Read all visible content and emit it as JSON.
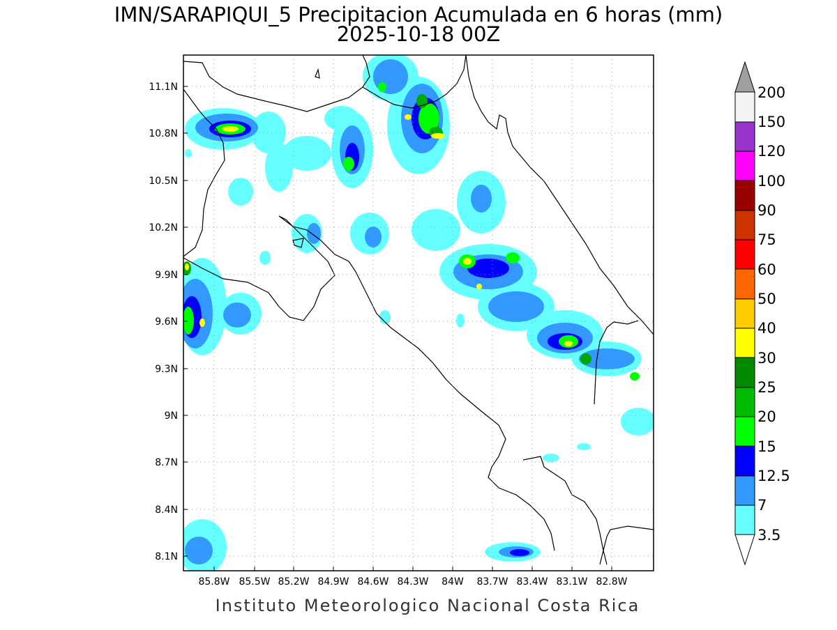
{
  "title": {
    "line1": "IMN/SARAPIQUI_5 Precipitacion Acumulada en 6 horas (mm)",
    "line2": "2025-10-18 00Z"
  },
  "footer": "Instituto Meteorologico Nacional Costa Rica",
  "axes": {
    "lat_labels": [
      "11.1N",
      "10.8N",
      "10.5N",
      "10.2N",
      "9.9N",
      "9.6N",
      "9.3N",
      "9N",
      "8.7N",
      "8.4N",
      "8.1N"
    ],
    "lon_labels": [
      "85.8W",
      "85.5W",
      "85.2W",
      "84.9W",
      "84.6W",
      "84.3W",
      "84W",
      "83.7W",
      "83.4W",
      "83.1W",
      "82.8W"
    ],
    "grid": true
  },
  "colorbar": {
    "labels": [
      "200",
      "150",
      "120",
      "100",
      "90",
      "75",
      "60",
      "50",
      "40",
      "30",
      "25",
      "20",
      "15",
      "12.5",
      "7",
      "3.5"
    ],
    "colors": [
      "#a0a0a0",
      "#f3f3f3",
      "#9933cc",
      "#ff00ff",
      "#990000",
      "#cc3300",
      "#ff0000",
      "#ff6600",
      "#ffcc00",
      "#ffff00",
      "#008800",
      "#00bb00",
      "#00ff00",
      "#0000ff",
      "#3399ff",
      "#66ffff"
    ]
  }
}
